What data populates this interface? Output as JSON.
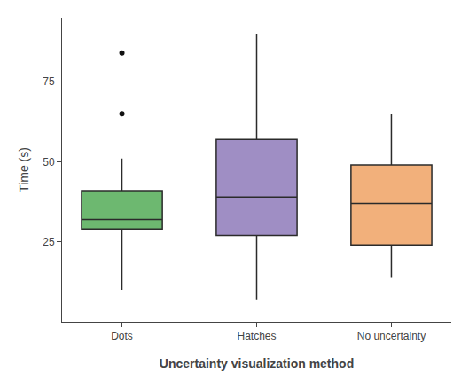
{
  "chart_data": {
    "type": "box",
    "xlabel": "Uncertainty visualization method",
    "ylabel": "Time (s)",
    "categories": [
      "Dots",
      "Hatches",
      "No uncertainty"
    ],
    "median": [
      32,
      39,
      37
    ],
    "q1": [
      29,
      27,
      24
    ],
    "q3": [
      41,
      57,
      49
    ],
    "whislo": [
      10,
      7,
      14
    ],
    "whishi": [
      51,
      90,
      65
    ],
    "fliers": [
      [
        65,
        84
      ],
      [],
      []
    ],
    "colors": [
      "#6db870",
      "#9f8ec4",
      "#f2b07b"
    ],
    "ylim": [
      0,
      95
    ],
    "yticks": [
      25,
      50,
      75
    ],
    "grid": false
  }
}
